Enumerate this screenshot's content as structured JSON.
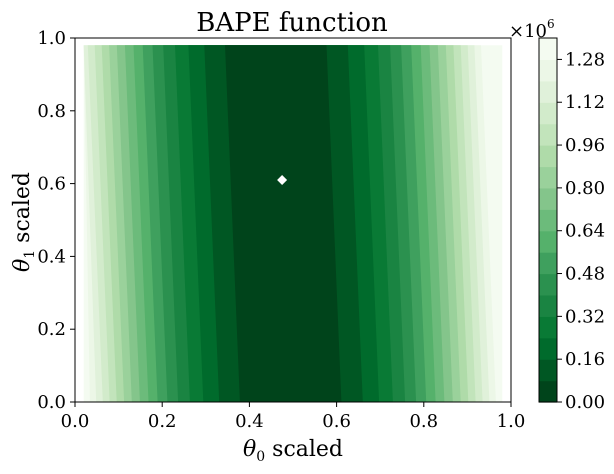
{
  "chart_data": {
    "type": "heatmap",
    "title": "BAPE function",
    "xlabel": {
      "symbol": "θ",
      "sub": "0",
      "text": " scaled"
    },
    "ylabel": {
      "symbol": "θ",
      "sub": "1",
      "text": " scaled"
    },
    "xlim": [
      0.0,
      1.0
    ],
    "ylim": [
      0.0,
      1.0
    ],
    "x_ticks": [
      "0.0",
      "0.2",
      "0.4",
      "0.6",
      "0.8",
      "1.0"
    ],
    "y_ticks": [
      "0.0",
      "0.2",
      "0.4",
      "0.6",
      "0.8",
      "1.0"
    ],
    "data_extent": {
      "x": [
        0.02,
        0.98
      ],
      "y": [
        0.0,
        0.98
      ]
    },
    "contour_levels": [
      0,
      80000,
      160000,
      240000,
      320000,
      400000,
      480000,
      560000,
      640000,
      720000,
      800000,
      880000,
      960000,
      1040000,
      1120000,
      1200000,
      1280000,
      1360000
    ],
    "minimum_valley": {
      "x_at_y0": 0.493,
      "x_at_y1": 0.458
    },
    "colorbar": {
      "multiplier_base": "×10",
      "multiplier_exp": "6",
      "tick_labels": [
        "0.00",
        "0.16",
        "0.32",
        "0.48",
        "0.64",
        "0.80",
        "0.96",
        "1.12",
        "1.28"
      ],
      "range": [
        0,
        1.36
      ]
    },
    "marker": {
      "x": 0.475,
      "y": 0.61,
      "color": "#ffffff"
    },
    "colors": [
      "#00441b",
      "#005723",
      "#006b2c",
      "#097a35",
      "#1a8442",
      "#2b914f",
      "#3fa05e",
      "#55b16b",
      "#6cbb7b",
      "#84c58b",
      "#9ad19b",
      "#afdba9",
      "#c2e4bb",
      "#d2ebcb",
      "#e0f1da",
      "#ecf7e7",
      "#f4fbf1"
    ]
  }
}
